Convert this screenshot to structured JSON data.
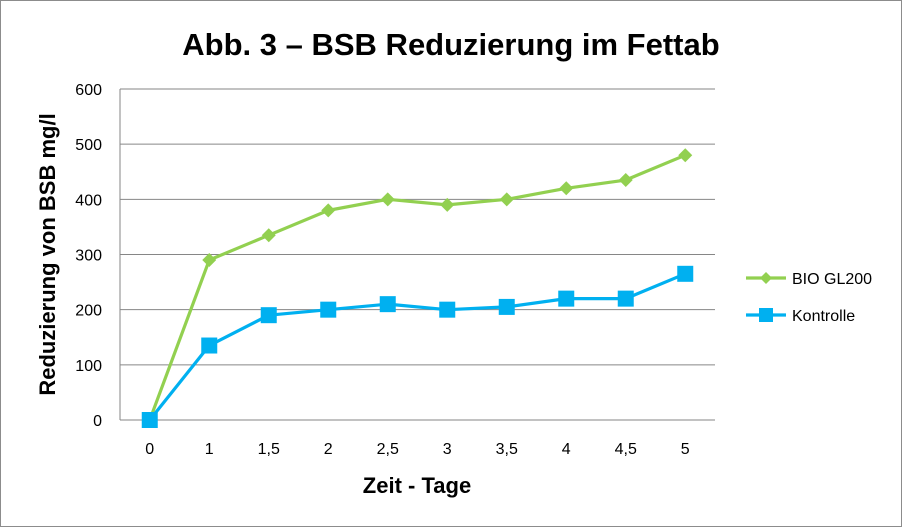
{
  "chart_data": {
    "type": "line",
    "title": "Abb. 3 – BSB Reduzierung im Fettab",
    "xlabel": "Zeit - Tage",
    "ylabel": "Reduzierung von BSB  mg/l",
    "categories": [
      "0",
      "1",
      "1,5",
      "2",
      "2,5",
      "3",
      "3,5",
      "4",
      "4,5",
      "5"
    ],
    "ylim": [
      0,
      600
    ],
    "yticks": [
      0,
      100,
      200,
      300,
      400,
      500,
      600
    ],
    "grid": true,
    "legend_position": "right",
    "series": [
      {
        "name": "BIO GL200",
        "color": "#92D050",
        "marker": "diamond",
        "values": [
          0,
          290,
          335,
          380,
          400,
          390,
          400,
          420,
          435,
          480
        ]
      },
      {
        "name": "Kontrolle",
        "color": "#00B0F0",
        "marker": "square",
        "values": [
          0,
          135,
          190,
          200,
          210,
          200,
          205,
          220,
          220,
          265
        ]
      }
    ]
  }
}
